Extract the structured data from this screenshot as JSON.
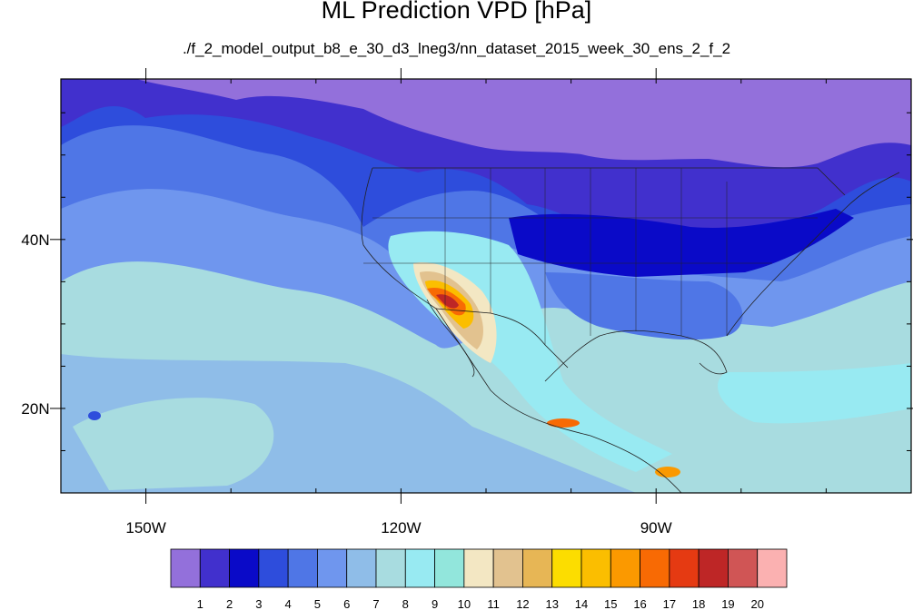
{
  "header": {
    "title": "ML Prediction VPD [hPa]",
    "subtitle": "./f_2_model_output_b8_e_30_d3_lneg3/nn_dataset_2015_week_30_ens_2_f_2"
  },
  "map": {
    "region": "North America and eastern Pacific",
    "lon_range": [
      -160,
      -60
    ],
    "lat_range": [
      10,
      59
    ],
    "lon_ticks": [
      {
        "value": -150,
        "label": "150W"
      },
      {
        "value": -120,
        "label": "120W"
      },
      {
        "value": -90,
        "label": "90W"
      }
    ],
    "lat_ticks": [
      {
        "value": 40,
        "label": "40N"
      },
      {
        "value": 20,
        "label": "20N"
      }
    ],
    "colorbar": {
      "colors": [
        "#9370db",
        "#4130cd",
        "#0a0ac8",
        "#2e4ddc",
        "#4f76e6",
        "#6f96ee",
        "#8fbde8",
        "#a8dce0",
        "#98eaf2",
        "#92e6dc",
        "#f3e7c3",
        "#e2c28f",
        "#e7b655",
        "#fcdd00",
        "#fbbe00",
        "#fb9900",
        "#f86a04",
        "#e53a12",
        "#be2626",
        "#d05555",
        "#fbb1b1"
      ],
      "labels": [
        "1",
        "2",
        "3",
        "4",
        "5",
        "6",
        "7",
        "8",
        "9",
        "10",
        "11",
        "12",
        "13",
        "14",
        "15",
        "16",
        "17",
        "18",
        "19",
        "20"
      ]
    }
  }
}
